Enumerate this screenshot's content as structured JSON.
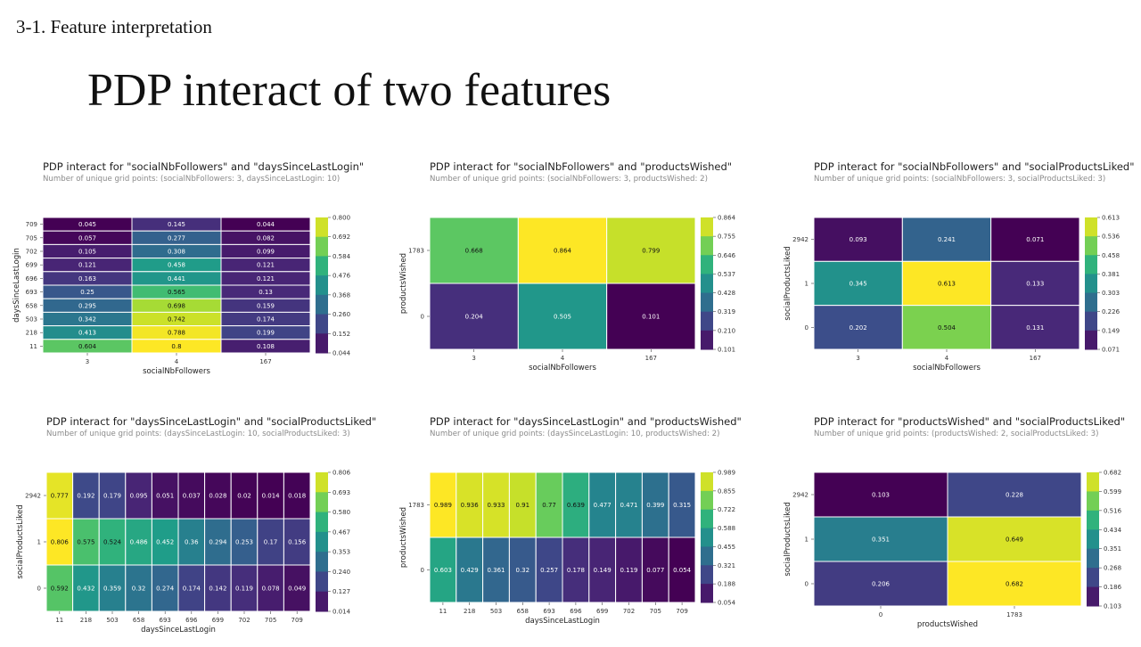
{
  "slide": {
    "section": "3-1. Feature interpretation",
    "title": "PDP interact of two features"
  },
  "colormap": [
    "#440154",
    "#482878",
    "#3e4989",
    "#31688e",
    "#26828e",
    "#1f9e89",
    "#35b779",
    "#6ece58",
    "#b5de2b",
    "#fde725"
  ],
  "chart_data": [
    {
      "type": "heatmap",
      "title": "PDP interact for \"socialNbFollowers\" and \"daysSinceLastLogin\"",
      "subtitle": "Number of unique grid points: (socialNbFollowers: 3, daysSinceLastLogin: 10)",
      "xlabel": "socialNbFollowers",
      "ylabel": "daysSinceLastLogin",
      "x_categories": [
        "3",
        "4",
        "167"
      ],
      "y_categories": [
        "709",
        "705",
        "702",
        "699",
        "696",
        "693",
        "658",
        "503",
        "218",
        "11"
      ],
      "values": [
        [
          "0.045",
          "0.145",
          "0.044"
        ],
        [
          "0.057",
          "0.277",
          "0.082"
        ],
        [
          "0.105",
          "0.308",
          "0.099"
        ],
        [
          "0.121",
          "0.458",
          "0.121"
        ],
        [
          "0.163",
          "0.441",
          "0.121"
        ],
        [
          "0.25",
          "0.565",
          "0.13"
        ],
        [
          "0.295",
          "0.698",
          "0.159"
        ],
        [
          "0.342",
          "0.742",
          "0.174"
        ],
        [
          "0.413",
          "0.788",
          "0.199"
        ],
        [
          "0.604",
          "0.8",
          "0.108"
        ]
      ],
      "colorbar_ticks": [
        "0.800",
        "0.692",
        "0.584",
        "0.476",
        "0.368",
        "0.260",
        "0.152",
        "0.044"
      ],
      "vmin": 0.044,
      "vmax": 0.8
    },
    {
      "type": "heatmap",
      "title": "PDP interact for \"socialNbFollowers\" and \"productsWished\"",
      "subtitle": "Number of unique grid points: (socialNbFollowers: 3, productsWished: 2)",
      "xlabel": "socialNbFollowers",
      "ylabel": "productsWished",
      "x_categories": [
        "3",
        "4",
        "167"
      ],
      "y_categories": [
        "1783",
        "0"
      ],
      "values": [
        [
          "0.668",
          "0.864",
          "0.799"
        ],
        [
          "0.204",
          "0.505",
          "0.101"
        ]
      ],
      "colorbar_ticks": [
        "0.864",
        "0.755",
        "0.646",
        "0.537",
        "0.428",
        "0.319",
        "0.210",
        "0.101"
      ],
      "vmin": 0.101,
      "vmax": 0.864
    },
    {
      "type": "heatmap",
      "title": "PDP interact for \"socialNbFollowers\" and \"socialProductsLiked\"",
      "subtitle": "Number of unique grid points: (socialNbFollowers: 3, socialProductsLiked: 3)",
      "xlabel": "socialNbFollowers",
      "ylabel": "socialProductsLiked",
      "x_categories": [
        "3",
        "4",
        "167"
      ],
      "y_categories": [
        "2942",
        "1",
        "0"
      ],
      "values": [
        [
          "0.093",
          "0.241",
          "0.071"
        ],
        [
          "0.345",
          "0.613",
          "0.133"
        ],
        [
          "0.202",
          "0.504",
          "0.131"
        ]
      ],
      "colorbar_ticks": [
        "0.613",
        "0.536",
        "0.458",
        "0.381",
        "0.303",
        "0.226",
        "0.149",
        "0.071"
      ],
      "vmin": 0.071,
      "vmax": 0.613
    },
    {
      "type": "heatmap",
      "title": "PDP interact for \"daysSinceLastLogin\" and \"socialProductsLiked\"",
      "subtitle": "Number of unique grid points: (daysSinceLastLogin: 10, socialProductsLiked: 3)",
      "xlabel": "daysSinceLastLogin",
      "ylabel": "socialProductsLiked",
      "x_categories": [
        "11",
        "218",
        "503",
        "658",
        "693",
        "696",
        "699",
        "702",
        "705",
        "709"
      ],
      "y_categories": [
        "2942",
        "1",
        "0"
      ],
      "values": [
        [
          "0.777",
          "0.192",
          "0.179",
          "0.095",
          "0.051",
          "0.037",
          "0.028",
          "0.02",
          "0.014",
          "0.018"
        ],
        [
          "0.806",
          "0.575",
          "0.524",
          "0.486",
          "0.452",
          "0.36",
          "0.294",
          "0.253",
          "0.17",
          "0.156"
        ],
        [
          "0.592",
          "0.432",
          "0.359",
          "0.32",
          "0.274",
          "0.174",
          "0.142",
          "0.119",
          "0.078",
          "0.049"
        ]
      ],
      "colorbar_ticks": [
        "0.806",
        "0.693",
        "0.580",
        "0.467",
        "0.353",
        "0.240",
        "0.127",
        "0.014"
      ],
      "vmin": 0.014,
      "vmax": 0.806
    },
    {
      "type": "heatmap",
      "title": "PDP interact for \"daysSinceLastLogin\" and \"productsWished\"",
      "subtitle": "Number of unique grid points: (daysSinceLastLogin: 10, productsWished: 2)",
      "xlabel": "daysSinceLastLogin",
      "ylabel": "productsWished",
      "x_categories": [
        "11",
        "218",
        "503",
        "658",
        "693",
        "696",
        "699",
        "702",
        "705",
        "709"
      ],
      "y_categories": [
        "1783",
        "0"
      ],
      "values": [
        [
          "0.989",
          "0.936",
          "0.933",
          "0.91",
          "0.77",
          "0.639",
          "0.477",
          "0.471",
          "0.399",
          "0.315"
        ],
        [
          "0.603",
          "0.429",
          "0.361",
          "0.32",
          "0.257",
          "0.178",
          "0.149",
          "0.119",
          "0.077",
          "0.054"
        ]
      ],
      "colorbar_ticks": [
        "0.989",
        "0.855",
        "0.722",
        "0.588",
        "0.455",
        "0.321",
        "0.188",
        "0.054"
      ],
      "vmin": 0.054,
      "vmax": 0.989
    },
    {
      "type": "heatmap",
      "title": "PDP interact for \"productsWished\" and \"socialProductsLiked\"",
      "subtitle": "Number of unique grid points: (productsWished: 2, socialProductsLiked: 3)",
      "xlabel": "productsWished",
      "ylabel": "socialProductsLiked",
      "x_categories": [
        "0",
        "1783"
      ],
      "y_categories": [
        "2942",
        "1",
        "0"
      ],
      "values": [
        [
          "0.103",
          "0.228"
        ],
        [
          "0.351",
          "0.649"
        ],
        [
          "0.206",
          "0.682"
        ]
      ],
      "colorbar_ticks": [
        "0.682",
        "0.599",
        "0.516",
        "0.434",
        "0.351",
        "0.268",
        "0.186",
        "0.103"
      ],
      "vmin": 0.103,
      "vmax": 0.682
    }
  ]
}
